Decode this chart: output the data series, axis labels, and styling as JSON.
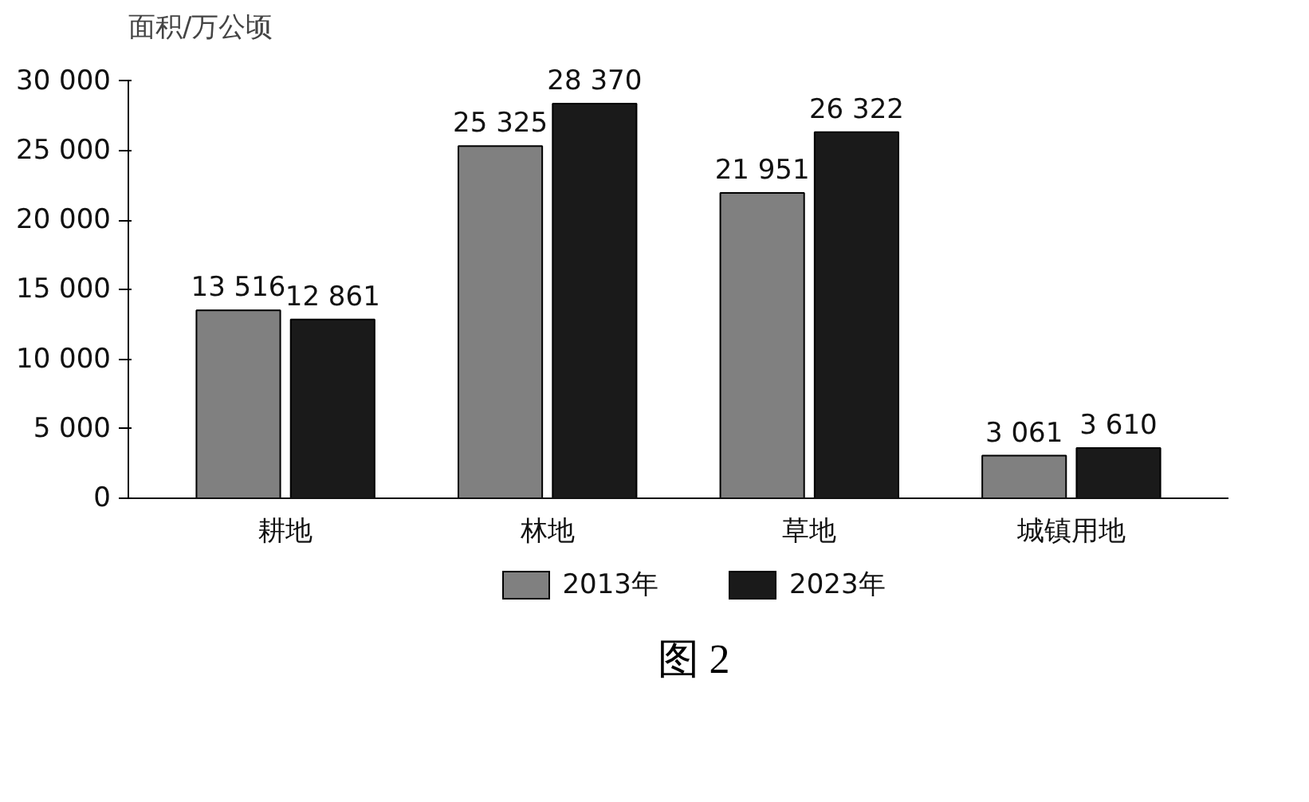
{
  "chart_data": {
    "type": "bar",
    "ylabel": "面积/万公顷",
    "categories": [
      "耕地",
      "林地",
      "草地",
      "城镇用地"
    ],
    "series": [
      {
        "name": "2013年",
        "color": "#808080",
        "values": [
          13516,
          25325,
          21951,
          3061
        ],
        "value_labels": [
          "13 516",
          "25 325",
          "21 951",
          "3 061"
        ]
      },
      {
        "name": "2023年",
        "color": "#1a1a1a",
        "values": [
          12861,
          28370,
          26322,
          3610
        ],
        "value_labels": [
          "12 861",
          "28 370",
          "26 322",
          "3 610"
        ]
      }
    ],
    "ylim": [
      0,
      30000
    ],
    "yticks": [
      {
        "value": 0,
        "label": "0"
      },
      {
        "value": 5000,
        "label": "5 000"
      },
      {
        "value": 10000,
        "label": "10 000"
      },
      {
        "value": 15000,
        "label": "15 000"
      },
      {
        "value": 20000,
        "label": "20 000"
      },
      {
        "value": 25000,
        "label": "25 000"
      },
      {
        "value": 30000,
        "label": "30 000"
      }
    ],
    "grid": false,
    "legend": "bottom",
    "annotations": [
      "图 2"
    ]
  }
}
